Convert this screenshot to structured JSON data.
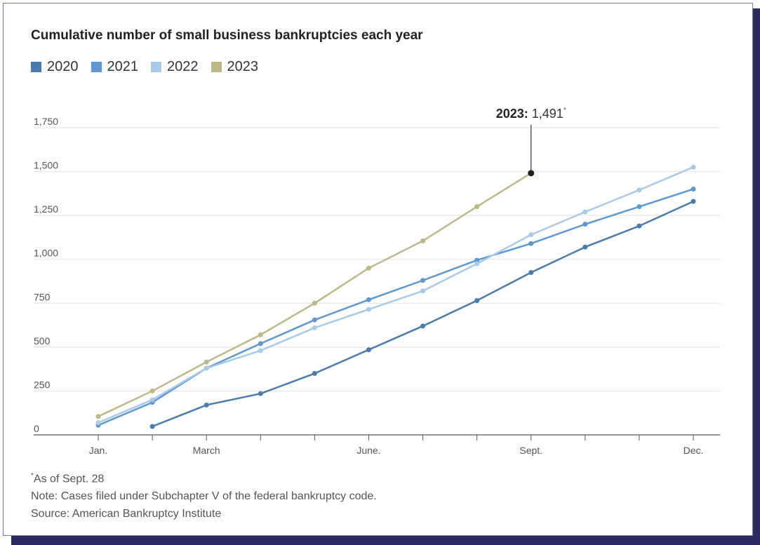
{
  "chart_data": {
    "type": "line",
    "title": "Cumulative number of small business bankruptcies each year",
    "xlabel": "",
    "ylabel": "",
    "x_tick_labels": [
      {
        "month": 1,
        "label": "Jan."
      },
      {
        "month": 3,
        "label": "March"
      },
      {
        "month": 6,
        "label": "June."
      },
      {
        "month": 9,
        "label": "Sept."
      },
      {
        "month": 12,
        "label": "Dec."
      }
    ],
    "x_ticks": [
      1,
      2,
      3,
      4,
      5,
      6,
      7,
      8,
      9,
      10,
      11,
      12
    ],
    "xlim": [
      1,
      12
    ],
    "ylim": [
      0,
      1750
    ],
    "y_ticks": [
      0,
      250,
      500,
      750,
      1000,
      1250,
      1500,
      1750
    ],
    "y_tick_labels": [
      "0",
      "250",
      "500",
      "750",
      "1,000",
      "1,250",
      "1,500",
      "1,750"
    ],
    "grid": true,
    "legend_position": "top-left",
    "series": [
      {
        "name": "2020",
        "color": "#4b7bac",
        "x": [
          2,
          3,
          4,
          5,
          6,
          7,
          8,
          9,
          10,
          11,
          12
        ],
        "values": [
          48,
          170,
          235,
          350,
          485,
          620,
          765,
          925,
          1070,
          1190,
          1330
        ]
      },
      {
        "name": "2021",
        "color": "#5f98d0",
        "x": [
          1,
          2,
          3,
          4,
          5,
          6,
          7,
          8,
          9,
          10,
          11,
          12
        ],
        "values": [
          55,
          185,
          380,
          520,
          655,
          770,
          880,
          995,
          1090,
          1200,
          1300,
          1400
        ]
      },
      {
        "name": "2022",
        "color": "#a8cbea",
        "x": [
          1,
          2,
          3,
          4,
          5,
          6,
          7,
          8,
          9,
          10,
          11,
          12
        ],
        "values": [
          70,
          200,
          380,
          480,
          610,
          715,
          820,
          975,
          1140,
          1270,
          1395,
          1525
        ]
      },
      {
        "name": "2023",
        "color": "#bcb986",
        "x": [
          1,
          2,
          3,
          4,
          5,
          6,
          7,
          8,
          9
        ],
        "values": [
          105,
          250,
          415,
          570,
          750,
          950,
          1105,
          1300,
          1491
        ]
      }
    ],
    "annotation": {
      "year_label": "2023:",
      "value_label": "1,491",
      "marker": "*",
      "series": "2023",
      "x": 9,
      "y": 1491
    }
  },
  "footer": {
    "footnote_marker": "*",
    "footnote_text": "As of Sept. 28",
    "note": "Note: Cases filed under Subchapter V of the federal bankruptcy code.",
    "source": "Source: American Bankruptcy Institute"
  }
}
